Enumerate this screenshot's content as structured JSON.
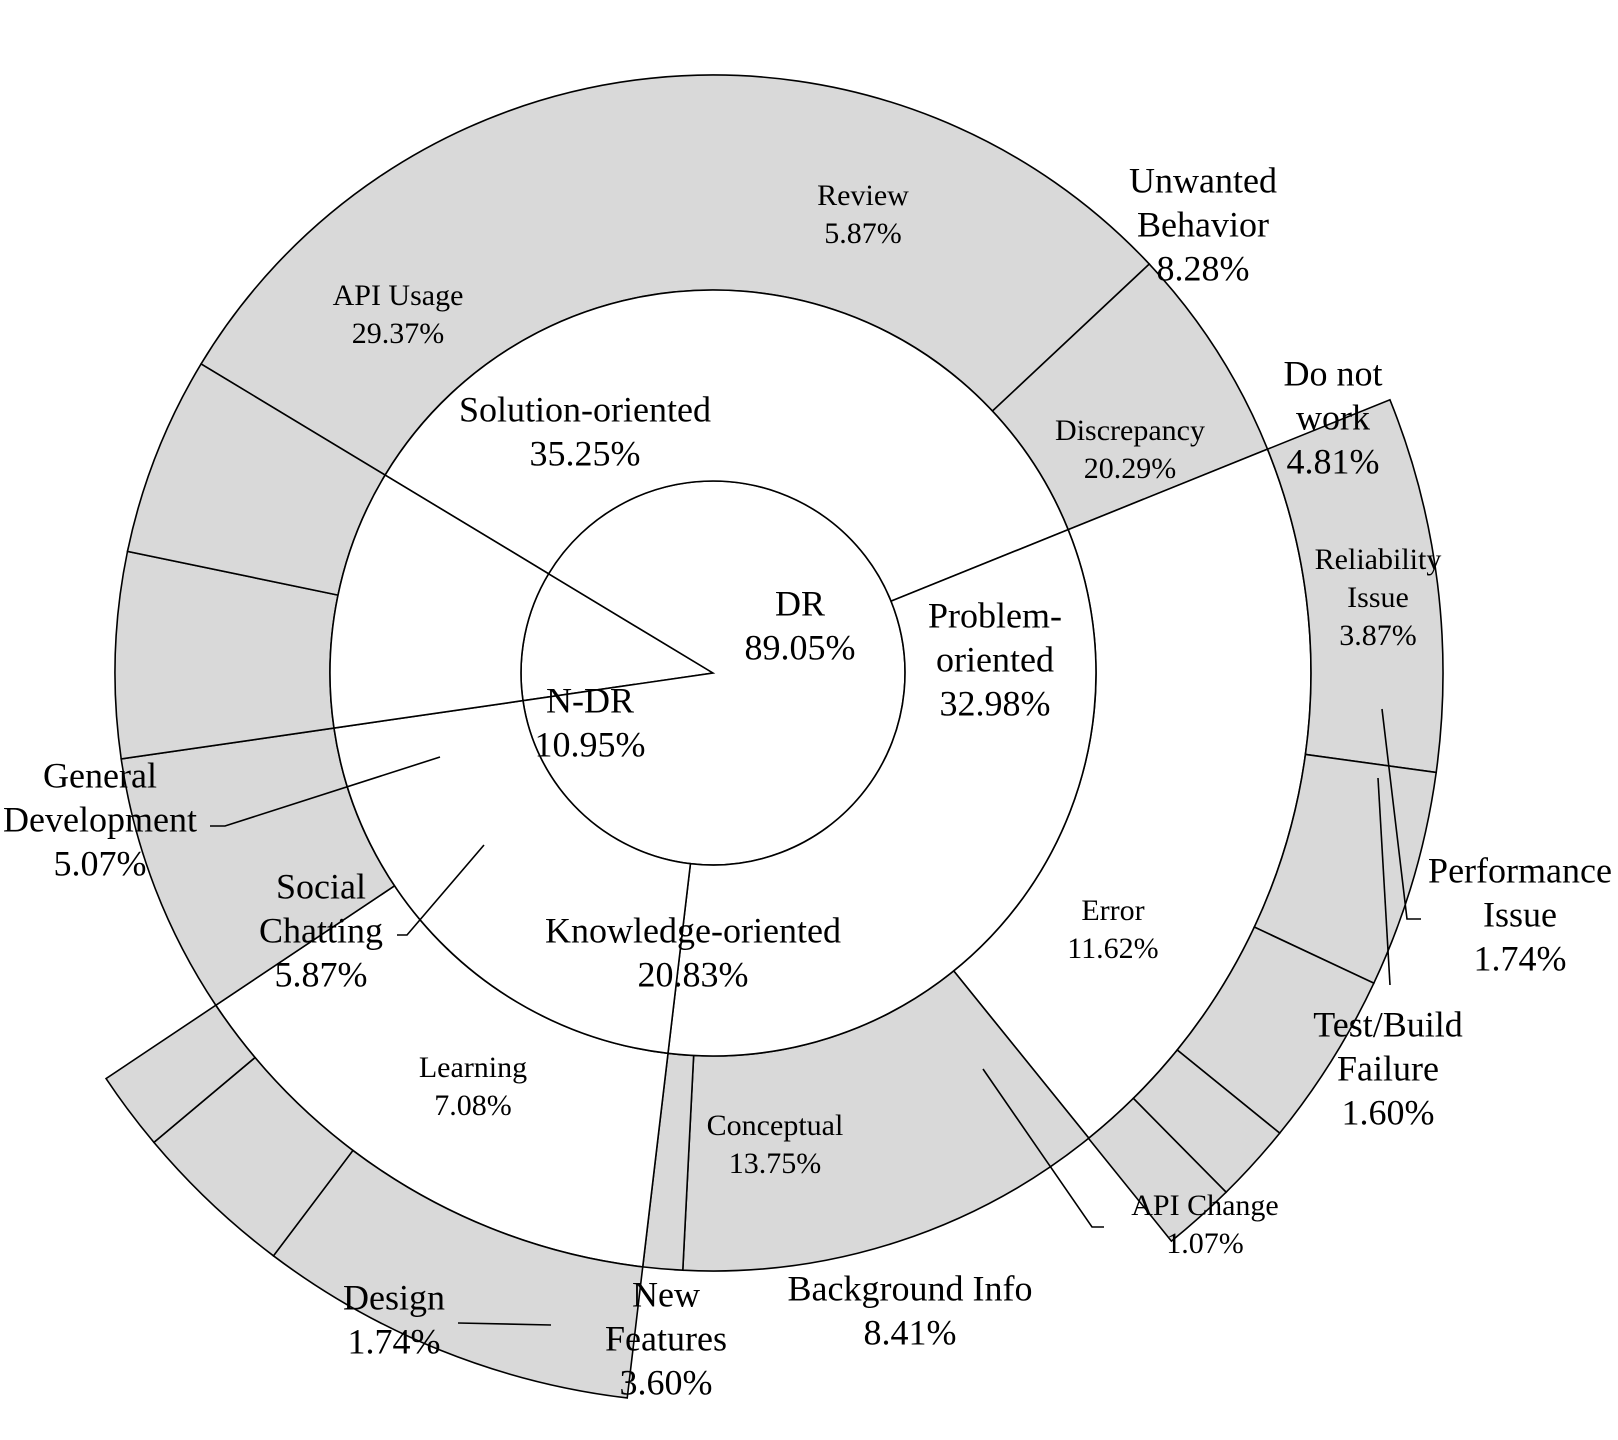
{
  "chart_data": {
    "type": "sunburst",
    "colors": {
      "filled": "#d9d9d9",
      "empty": "#ffffff",
      "line": "#000000"
    },
    "inner": [
      {
        "name": "N-DR",
        "value": 10.95
      },
      {
        "name": "DR",
        "value": 89.05
      }
    ],
    "middle": [
      {
        "name": "Solution-oriented",
        "value": 35.25
      },
      {
        "name": "Problem-oriented",
        "value": 32.98
      },
      {
        "name": "Knowledge-oriented",
        "value": 20.83
      }
    ],
    "outer": [
      {
        "name": "API Usage",
        "value": 29.37,
        "group": "Solution-oriented"
      },
      {
        "name": "Review",
        "value": 5.87,
        "group": "Solution-oriented"
      },
      {
        "name": "Discrepancy",
        "value": 20.29,
        "group": "Problem-oriented"
      },
      {
        "name": "Error",
        "value": 11.62,
        "group": "Problem-oriented"
      },
      {
        "name": "API Change",
        "value": 1.07,
        "group": "Problem-oriented"
      },
      {
        "name": "Conceptual",
        "value": 13.75,
        "group": "Knowledge-oriented"
      },
      {
        "name": "Learning",
        "value": 7.08,
        "group": "Knowledge-oriented"
      },
      {
        "name": "Social Chatting",
        "value": 5.87,
        "group": "N-DR"
      },
      {
        "name": "General Development",
        "value": 5.07,
        "group": "N-DR"
      }
    ],
    "leaves": [
      {
        "name": "Unwanted Behavior",
        "value": 8.28,
        "group": "Discrepancy"
      },
      {
        "name": "Do not work",
        "value": 4.81,
        "group": "Discrepancy"
      },
      {
        "name": "Reliability Issue",
        "value": 3.87,
        "group": "Discrepancy"
      },
      {
        "name": "Performance Issue",
        "value": 1.74,
        "group": "Discrepancy"
      },
      {
        "name": "Test/Build Failure",
        "value": 1.6,
        "group": "Discrepancy"
      },
      {
        "name": "Background Info",
        "value": 8.41,
        "group": "Conceptual"
      },
      {
        "name": "New Features",
        "value": 3.6,
        "group": "Conceptual"
      },
      {
        "name": "Design",
        "value": 1.74,
        "group": "Conceptual"
      }
    ],
    "labels": {
      "inner": [
        {
          "lines": [
            "DR",
            "89.05%"
          ]
        },
        {
          "lines": [
            "N-DR",
            "10.95%"
          ]
        }
      ],
      "middle": [
        {
          "lines": [
            "Solution-oriented",
            "35.25%"
          ]
        },
        {
          "lines": [
            "Problem-",
            "oriented",
            "32.98%"
          ]
        },
        {
          "lines": [
            "Knowledge-oriented",
            "20.83%"
          ]
        }
      ],
      "outer": [
        {
          "lines": [
            "API Usage",
            "29.37%"
          ]
        },
        {
          "lines": [
            "Review",
            "5.87%"
          ]
        },
        {
          "lines": [
            "Discrepancy",
            "20.29%"
          ]
        },
        {
          "lines": [
            "Error",
            "11.62%"
          ]
        },
        {
          "lines": [
            "Conceptual",
            "13.75%"
          ]
        },
        {
          "lines": [
            "Learning",
            "7.08%"
          ]
        },
        {
          "lines": [
            "Unwanted",
            "Behavior",
            "8.28%"
          ]
        },
        {
          "lines": [
            "Do not",
            "work",
            "4.81%"
          ]
        },
        {
          "lines": [
            "Reliability",
            "Issue",
            "3.87%"
          ]
        },
        {
          "lines": [
            "Background Info",
            "8.41%"
          ]
        },
        {
          "lines": [
            "New",
            "Features",
            "3.60%"
          ]
        }
      ],
      "callouts": [
        {
          "lines": [
            "General",
            "Development",
            "5.07%"
          ]
        },
        {
          "lines": [
            "Social",
            "Chatting",
            "5.87%"
          ]
        },
        {
          "lines": [
            "Design",
            "1.74%"
          ]
        },
        {
          "lines": [
            "API Change",
            "1.07%"
          ]
        },
        {
          "lines": [
            "Test/Build",
            "Failure",
            "1.60%"
          ]
        },
        {
          "lines": [
            "Performance",
            "Issue",
            "1.74%"
          ]
        }
      ]
    }
  }
}
